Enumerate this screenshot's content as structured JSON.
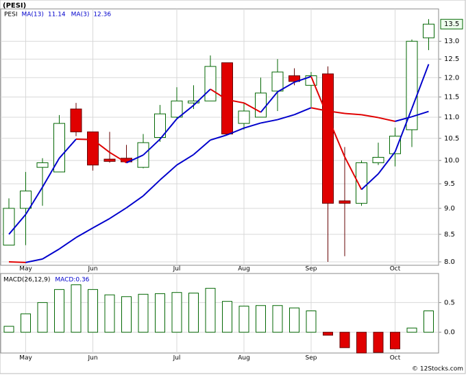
{
  "chart_data": [
    {
      "type": "candlestick",
      "title": "(PESI)",
      "symbol": "PESI",
      "log_y": true,
      "grid": true,
      "open": [
        8.3,
        9.0,
        9.85,
        9.75,
        11.2,
        10.65,
        10.03,
        10.05,
        9.85,
        10.52,
        11.0,
        11.35,
        11.4,
        12.4,
        10.85,
        11.0,
        11.65,
        12.05,
        11.8,
        12.1,
        9.15,
        9.1,
        9.95,
        10.15,
        10.7,
        13.1
      ],
      "high": [
        9.2,
        9.75,
        10.05,
        11.05,
        11.35,
        10.65,
        10.65,
        10.35,
        10.6,
        11.3,
        11.75,
        11.8,
        12.6,
        12.4,
        11.35,
        12.0,
        12.5,
        12.25,
        12.15,
        12.3,
        10.3,
        10.0,
        10.4,
        10.75,
        13.05,
        13.65
      ],
      "low": [
        8.3,
        8.3,
        9.05,
        9.75,
        10.55,
        9.78,
        9.95,
        9.95,
        9.83,
        10.42,
        10.97,
        11.2,
        11.4,
        10.6,
        10.7,
        11.0,
        11.15,
        11.8,
        11.25,
        8.0,
        8.1,
        9.05,
        9.9,
        9.87,
        10.3,
        12.75
      ],
      "close": [
        9.0,
        9.35,
        9.95,
        10.85,
        10.65,
        9.9,
        9.98,
        9.97,
        10.4,
        11.08,
        11.4,
        11.4,
        12.3,
        10.6,
        11.15,
        11.6,
        12.15,
        11.9,
        12.05,
        9.1,
        9.1,
        9.95,
        10.07,
        10.55,
        13.0,
        13.5
      ],
      "up_color": "#006600",
      "down_color": "#e00000",
      "rising_color": "#0000cc",
      "falling_color": "#e00000",
      "series": [
        {
          "name": "MA(13)",
          "value_label": "11.14",
          "color": "#0000cc",
          "values": [
            8.0,
            7.99,
            8.05,
            8.23,
            8.44,
            8.62,
            8.8,
            9.01,
            9.25,
            9.58,
            9.9,
            10.13,
            10.46,
            10.58,
            10.74,
            10.86,
            10.94,
            11.06,
            11.23,
            11.15,
            11.09,
            11.06,
            10.99,
            10.9,
            11.01,
            11.14
          ]
        },
        {
          "name": "MA(3)",
          "value_label": "12.36",
          "color": "#0000cc",
          "values": [
            8.5,
            8.88,
            9.43,
            10.05,
            10.48,
            10.47,
            10.18,
            9.95,
            10.12,
            10.48,
            10.96,
            11.29,
            11.7,
            11.43,
            11.35,
            11.12,
            11.63,
            11.88,
            12.03,
            11.0,
            10.08,
            9.38,
            9.71,
            10.19,
            11.21,
            12.36
          ]
        }
      ],
      "last_price": {
        "value": 13.5,
        "label": "13.5"
      },
      "ylim": [
        7.94,
        13.96
      ],
      "yticks": [
        {
          "value": 8,
          "label": "8.0"
        },
        {
          "value": 8.5,
          "label": "8.5"
        },
        {
          "value": 9,
          "label": "9.0"
        },
        {
          "value": 9.5,
          "label": "9.5"
        },
        {
          "value": 10,
          "label": "10.0"
        },
        {
          "value": 10.5,
          "label": "10.5"
        },
        {
          "value": 11,
          "label": "11.0"
        },
        {
          "value": 11.5,
          "label": "11.5"
        },
        {
          "value": 12,
          "label": "12.0"
        },
        {
          "value": 12.5,
          "label": "12.5"
        },
        {
          "value": 13,
          "label": "13.0"
        }
      ],
      "xticks": [
        {
          "value": 1,
          "label": "May"
        },
        {
          "value": 5,
          "label": "Jun"
        },
        {
          "value": 10,
          "label": "Jul"
        },
        {
          "value": 14,
          "label": "Aug"
        },
        {
          "value": 18,
          "label": "Sep"
        },
        {
          "value": 23,
          "label": "Oct"
        }
      ]
    },
    {
      "type": "bar",
      "title": "MACD(26,12,9)",
      "value_label": "MACD:0.36",
      "grid": true,
      "values": [
        0.1,
        0.31,
        0.5,
        0.72,
        0.8,
        0.72,
        0.63,
        0.6,
        0.64,
        0.65,
        0.67,
        0.66,
        0.74,
        0.52,
        0.44,
        0.45,
        0.45,
        0.41,
        0.36,
        -0.05,
        -0.26,
        -0.35,
        -0.34,
        -0.28,
        0.07,
        0.36
      ],
      "up_color": "#006600",
      "down_color": "#e00000",
      "ylim": [
        -0.35,
        0.99
      ],
      "yticks": [
        {
          "value": 0,
          "label": "0.0"
        },
        {
          "value": 0.5,
          "label": "0.5"
        }
      ],
      "xticks": [
        {
          "value": 1,
          "label": "May"
        },
        {
          "value": 5,
          "label": "Jun"
        },
        {
          "value": 10,
          "label": "Jul"
        },
        {
          "value": 14,
          "label": "Aug"
        },
        {
          "value": 18,
          "label": "Sep"
        },
        {
          "value": 23,
          "label": "Oct"
        }
      ]
    }
  ],
  "footer": "© 12Stocks.com"
}
